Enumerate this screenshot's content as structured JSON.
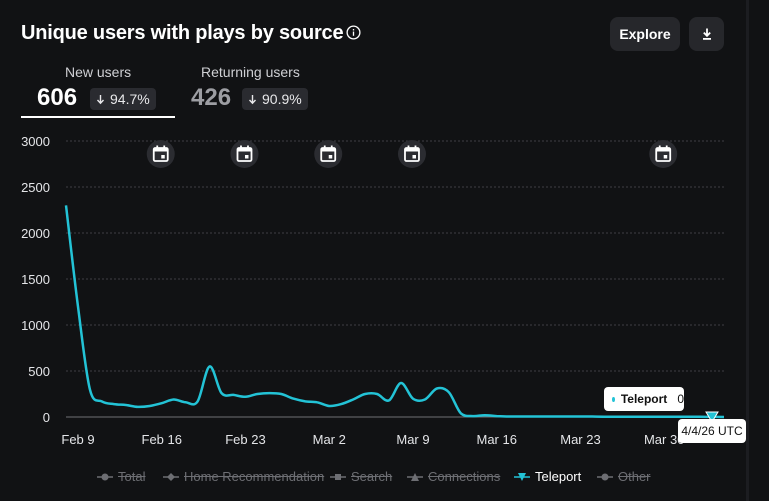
{
  "header": {
    "title": "Unique users with plays by source",
    "explore_label": "Explore"
  },
  "tabs": [
    {
      "label": "New users",
      "value": "606",
      "change": "94.7%"
    },
    {
      "label": "Returning users",
      "value": "426",
      "change": "90.9%"
    }
  ],
  "tooltip": {
    "series": "Teleport",
    "value": "0",
    "date": "4/4/26 UTC"
  },
  "legend": [
    {
      "label": "Total",
      "active": false
    },
    {
      "label": "Home Recommendation",
      "active": false
    },
    {
      "label": "Search",
      "active": false
    },
    {
      "label": "Connections",
      "active": false
    },
    {
      "label": "Teleport",
      "active": true
    },
    {
      "label": "Other",
      "active": false
    }
  ],
  "colors": {
    "series": "#23c3d6",
    "background": "#111214"
  },
  "chart_data": {
    "type": "line",
    "title": "Unique users with plays by source",
    "ylim": [
      0,
      3000
    ],
    "yticks": [
      0,
      500,
      1000,
      1500,
      2000,
      2500,
      3000
    ],
    "xtick_labels": [
      "Feb 9",
      "Feb 16",
      "Feb 23",
      "Mar 2",
      "Mar 9",
      "Mar 16",
      "Mar 23",
      "Mar 30"
    ],
    "start_date": "Feb 9",
    "event_marker_days": [
      7,
      14,
      21,
      28,
      49
    ],
    "series": [
      {
        "name": "Teleport",
        "values": [
          2300,
          1200,
          300,
          170,
          140,
          130,
          110,
          120,
          150,
          190,
          160,
          170,
          550,
          260,
          240,
          220,
          250,
          260,
          250,
          200,
          170,
          160,
          120,
          140,
          190,
          250,
          250,
          180,
          370,
          200,
          190,
          310,
          270,
          40,
          10,
          20,
          10,
          5,
          5,
          5,
          5,
          5,
          5,
          5,
          5,
          3,
          3,
          3,
          3,
          3,
          3,
          2,
          2,
          2,
          1,
          0
        ]
      }
    ]
  }
}
